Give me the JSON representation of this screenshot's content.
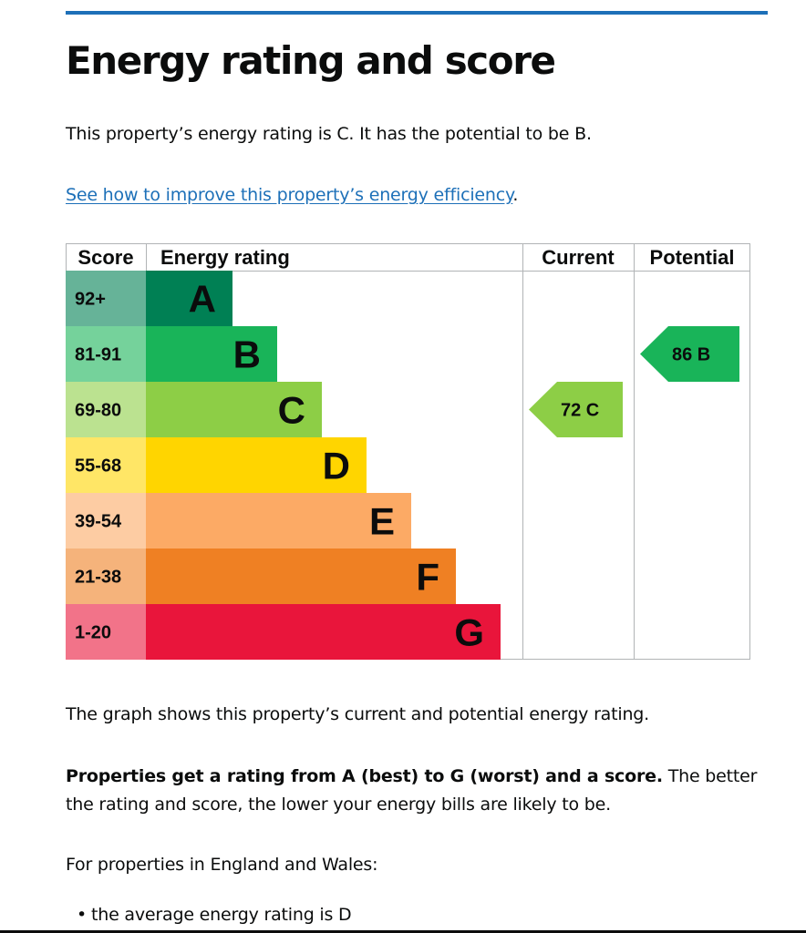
{
  "title": "Energy rating and score",
  "intro": "This property’s energy rating is C. It has the potential to be B.",
  "link_text": "See how to improve this property’s energy efficiency",
  "link_suffix": ".",
  "graph_caption": "The graph shows this property’s current and potential energy rating.",
  "rating_bold": "Properties get a rating from A (best) to G (worst) and a score.",
  "rating_rest": " The better the rating and score, the lower your energy bills are likely to be.",
  "regional_intro": "For properties in England and Wales:",
  "bullets": [
    "the average energy rating is D"
  ],
  "chart_data": {
    "type": "bar",
    "headers": {
      "score": "Score",
      "rating": "Energy rating",
      "current": "Current",
      "potential": "Potential"
    },
    "bands": [
      {
        "score": "92+",
        "letter": "A",
        "band_color": "#008054",
        "score_color": "#66b398"
      },
      {
        "score": "81-91",
        "letter": "B",
        "band_color": "#19b459",
        "score_color": "#75d29b"
      },
      {
        "score": "69-80",
        "letter": "C",
        "band_color": "#8dce46",
        "score_color": "#bbe290"
      },
      {
        "score": "55-68",
        "letter": "D",
        "band_color": "#ffd500",
        "score_color": "#ffe666"
      },
      {
        "score": "39-54",
        "letter": "E",
        "band_color": "#fcaa65",
        "score_color": "#fdcca3"
      },
      {
        "score": "21-38",
        "letter": "F",
        "band_color": "#ef8023",
        "score_color": "#f5b37b"
      },
      {
        "score": "1-20",
        "letter": "G",
        "band_color": "#e9153b",
        "score_color": "#f27389"
      }
    ],
    "current": {
      "score": 72,
      "letter": "C",
      "label": "72 C"
    },
    "potential": {
      "score": 86,
      "letter": "B",
      "label": "86 B"
    }
  }
}
